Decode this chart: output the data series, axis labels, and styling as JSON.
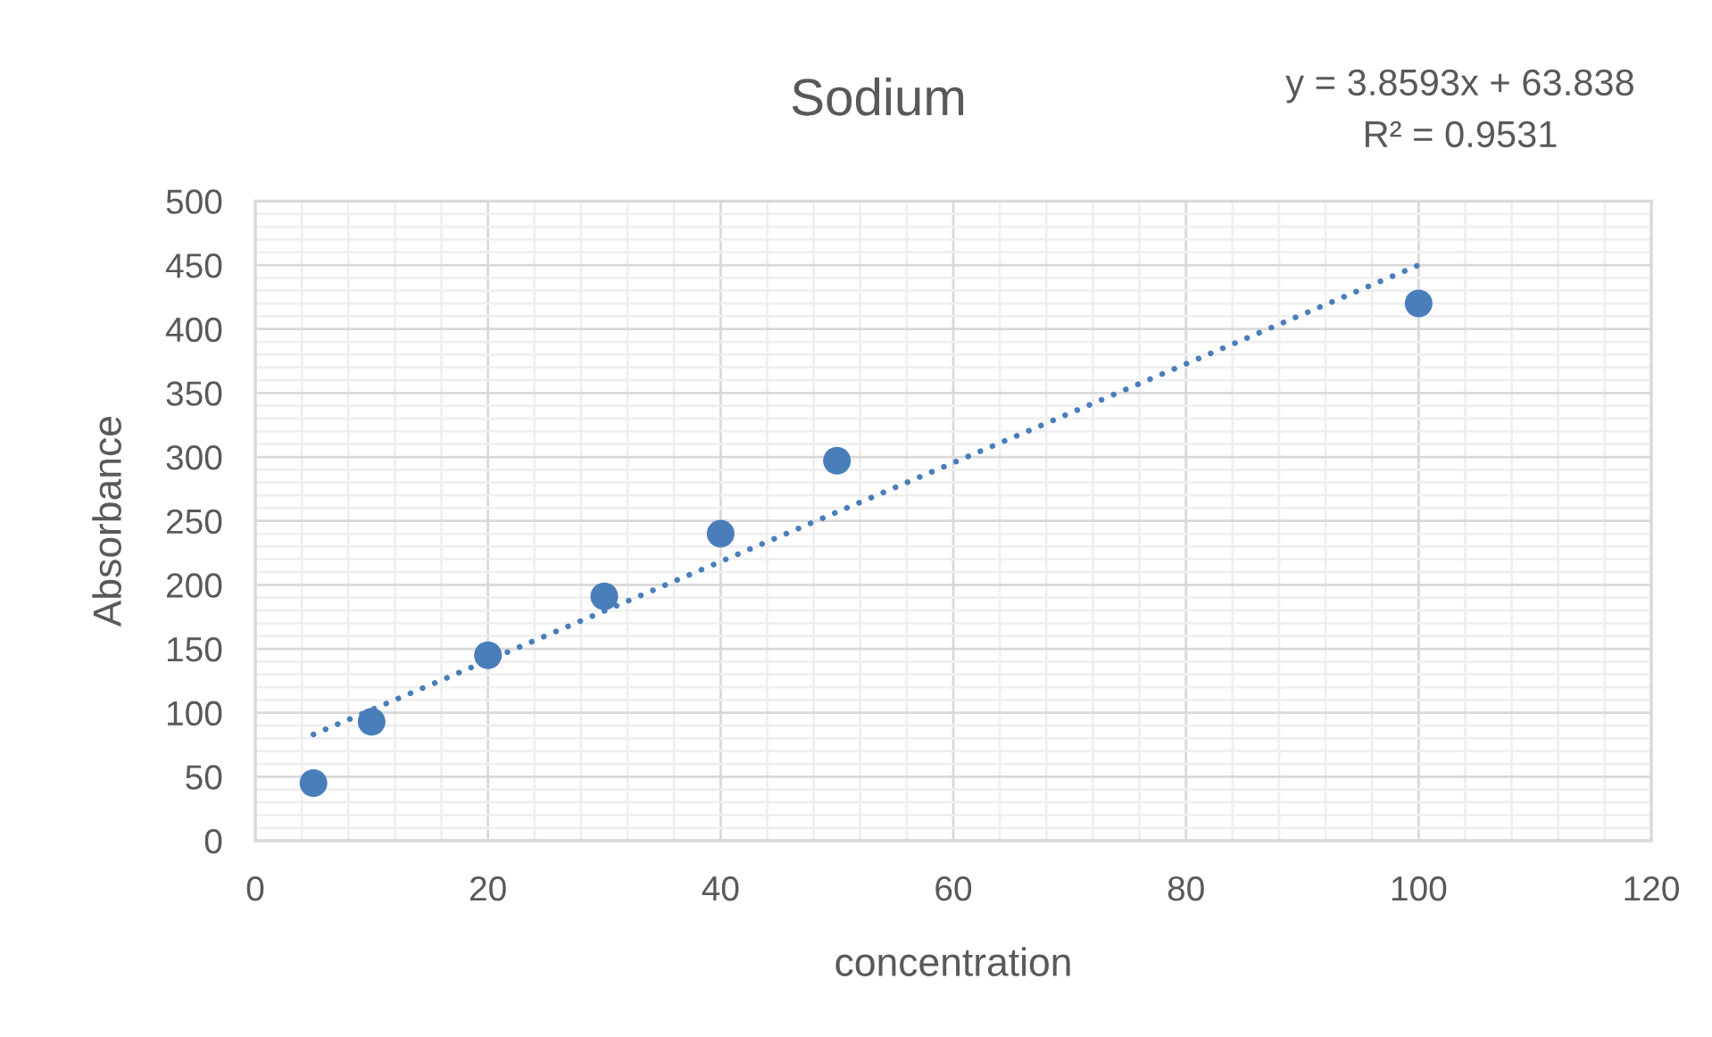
{
  "chart_data": {
    "type": "scatter",
    "title": "Sodium",
    "xlabel": "concentration",
    "ylabel": "Absorbance",
    "annotations": [
      "y = 3.8593x + 63.838",
      "R² = 0.9531"
    ],
    "series": [
      {
        "color": "#4a7ebb",
        "marker": "circle",
        "x": [
          5,
          10,
          20,
          30,
          40,
          50,
          100
        ],
        "values": [
          45,
          93,
          145,
          191,
          240,
          297,
          420
        ]
      },
      {
        "type": "line",
        "color": "#4a7ebb",
        "marker": "none",
        "line_style": "dotted",
        "x": [
          5,
          100
        ],
        "values": [
          83,
          450
        ]
      }
    ],
    "xlim": [
      0,
      120
    ],
    "ylim": [
      0,
      500
    ],
    "xticks": [
      0,
      {
        "value": 4,
        "label": null
      },
      {
        "value": 8,
        "label": null
      },
      {
        "value": 12,
        "label": null
      },
      {
        "value": 16,
        "label": null
      },
      20,
      {
        "value": 24,
        "label": null
      },
      {
        "value": 28,
        "label": null
      },
      {
        "value": 32,
        "label": null
      },
      {
        "value": 36,
        "label": null
      },
      40,
      {
        "value": 44,
        "label": null
      },
      {
        "value": 48,
        "label": null
      },
      {
        "value": 52,
        "label": null
      },
      {
        "value": 56,
        "label": null
      },
      60,
      {
        "value": 64,
        "label": null
      },
      {
        "value": 68,
        "label": null
      },
      {
        "value": 72,
        "label": null
      },
      {
        "value": 76,
        "label": null
      },
      80,
      {
        "value": 84,
        "label": null
      },
      {
        "value": 88,
        "label": null
      },
      {
        "value": 92,
        "label": null
      },
      {
        "value": 96,
        "label": null
      },
      100,
      {
        "value": 104,
        "label": null
      },
      {
        "value": 108,
        "label": null
      },
      {
        "value": 112,
        "label": null
      },
      {
        "value": 116,
        "label": null
      },
      120
    ],
    "yticks": [
      0,
      {
        "value": 10,
        "label": null
      },
      {
        "value": 20,
        "label": null
      },
      {
        "value": 30,
        "label": null
      },
      {
        "value": 40,
        "label": null
      },
      50,
      {
        "value": 60,
        "label": null
      },
      {
        "value": 70,
        "label": null
      },
      {
        "value": 80,
        "label": null
      },
      {
        "value": 90,
        "label": null
      },
      100,
      {
        "value": 110,
        "label": null
      },
      {
        "value": 120,
        "label": null
      },
      {
        "value": 130,
        "label": null
      },
      {
        "value": 140,
        "label": null
      },
      150,
      {
        "value": 160,
        "label": null
      },
      {
        "value": 170,
        "label": null
      },
      {
        "value": 180,
        "label": null
      },
      {
        "value": 190,
        "label": null
      },
      200,
      {
        "value": 210,
        "label": null
      },
      {
        "value": 220,
        "label": null
      },
      {
        "value": 230,
        "label": null
      },
      {
        "value": 240,
        "label": null
      },
      250,
      {
        "value": 260,
        "label": null
      },
      {
        "value": 270,
        "label": null
      },
      {
        "value": 280,
        "label": null
      },
      {
        "value": 290,
        "label": null
      },
      300,
      {
        "value": 310,
        "label": null
      },
      {
        "value": 320,
        "label": null
      },
      {
        "value": 330,
        "label": null
      },
      {
        "value": 340,
        "label": null
      },
      350,
      {
        "value": 360,
        "label": null
      },
      {
        "value": 370,
        "label": null
      },
      {
        "value": 380,
        "label": null
      },
      {
        "value": 390,
        "label": null
      },
      400,
      {
        "value": 410,
        "label": null
      },
      {
        "value": 420,
        "label": null
      },
      {
        "value": 430,
        "label": null
      },
      {
        "value": 440,
        "label": null
      },
      450,
      {
        "value": 460,
        "label": null
      },
      {
        "value": 470,
        "label": null
      },
      {
        "value": 480,
        "label": null
      },
      {
        "value": 490,
        "label": null
      },
      500
    ],
    "grid": true
  }
}
